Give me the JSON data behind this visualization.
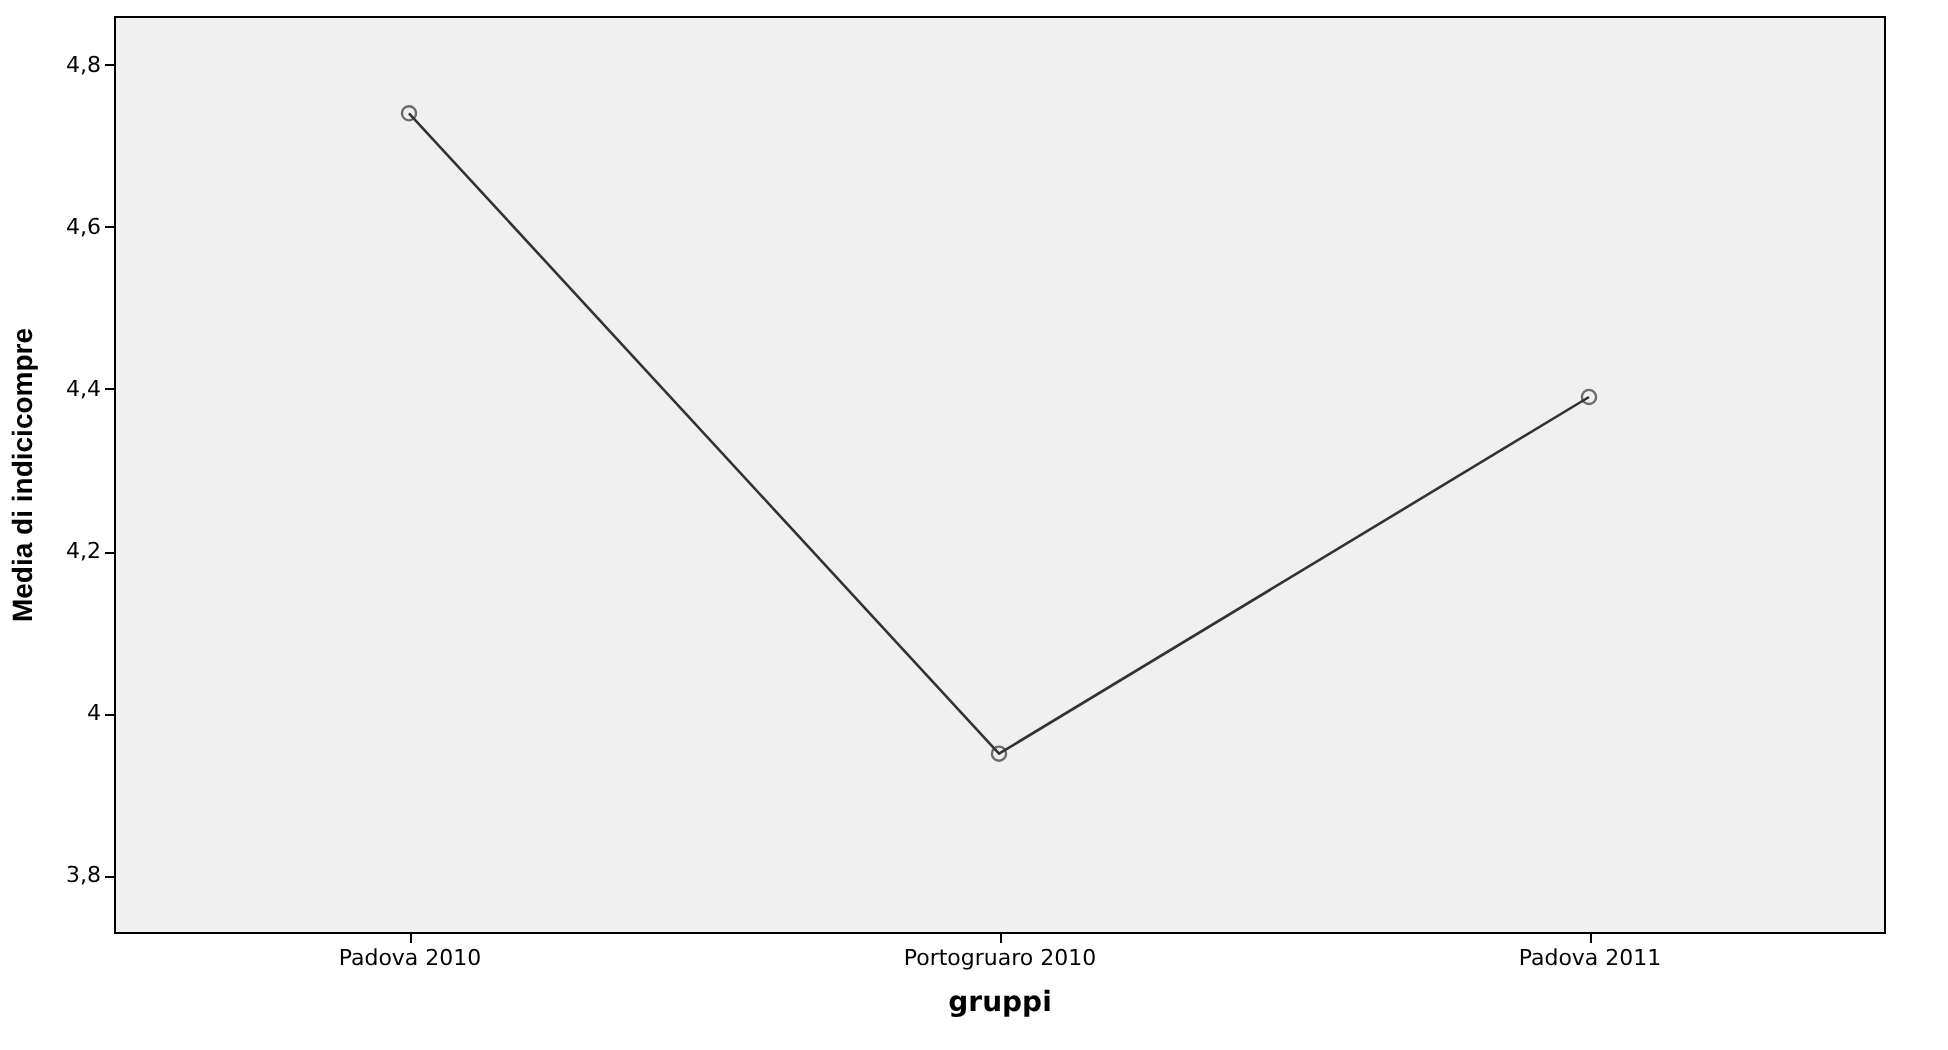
{
  "chart_data": {
    "type": "line",
    "xlabel": "gruppi",
    "ylabel": "Media di indicicompre",
    "categories": [
      "Padova 2010",
      "Portogruaro 2010",
      "Padova 2011"
    ],
    "series": [
      {
        "color": "#333333",
        "values": [
          4.74,
          3.95,
          4.39
        ]
      }
    ],
    "ylim": [
      3.73,
      4.86
    ],
    "yticks": [
      {
        "value": 3.8,
        "label": "3,8"
      },
      4,
      {
        "value": 4.2,
        "label": "4,2"
      },
      {
        "value": 4.4,
        "label": "4,4"
      },
      {
        "value": 4.6,
        "label": "4,6"
      },
      {
        "value": 4.8,
        "label": "4,8"
      }
    ],
    "marker": "circle",
    "line_style": "solid",
    "grid": false,
    "legend": false
  }
}
